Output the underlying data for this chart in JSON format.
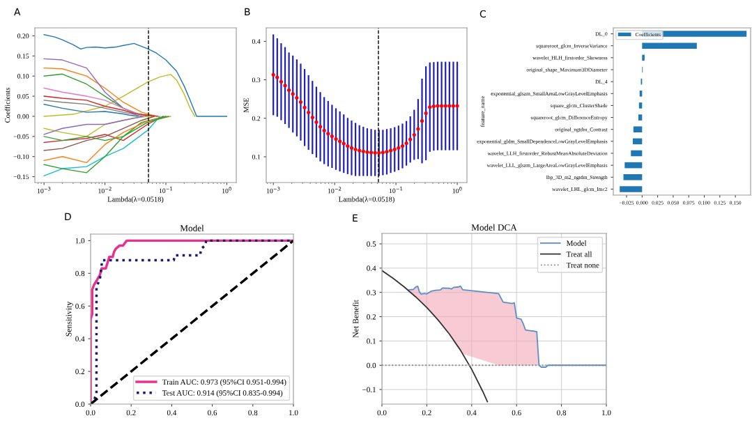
{
  "chart_data": [
    {
      "type": "line",
      "annotations": [
        "A"
      ],
      "xlabel": "Lambda(λ=0.0518)",
      "ylabel": "Coefficients",
      "log": "x",
      "grid": false,
      "legend": false,
      "xlim": [
        0.000707,
        1.43
      ],
      "xticks": [
        {
          "value": 0.001,
          "label": "10$^{−3}$"
        },
        {
          "value": 0.01,
          "label": "10$^{−2}$"
        },
        {
          "value": 0.1,
          "label": "10$^{−1}$"
        },
        {
          "value": 1,
          "label": "10$^{0}$"
        }
      ],
      "ylim": [
        -0.1645,
        0.2197
      ],
      "yticks": [
        {
          "value": -0.15,
          "label": "−0.15"
        },
        {
          "value": -0.1,
          "label": "−0.10"
        },
        {
          "value": -0.05,
          "label": "−0.05"
        },
        {
          "value": 0,
          "label": "0.00"
        },
        {
          "value": 0.05,
          "label": "0.05"
        },
        {
          "value": 0.1,
          "label": "0.10"
        },
        {
          "value": 0.15,
          "label": "0.15"
        },
        {
          "value": 0.2,
          "label": "0.20"
        }
      ],
      "ref_lines": [
        {
          "axis": "x",
          "value": 0.0518,
          "color": "#000000",
          "line_style": "dashed"
        }
      ],
      "series": [
        {
          "color": "#1f77b4",
          "x": [
            0.001,
            0.0015,
            0.002,
            0.003,
            0.004,
            0.005,
            0.007,
            0.01,
            0.015,
            0.02,
            0.03,
            0.05,
            0.07,
            0.1,
            0.15,
            0.2,
            0.25,
            0.32,
            1
          ],
          "values": [
            0.203,
            0.197,
            0.19,
            0.178,
            0.167,
            0.171,
            0.172,
            0.17,
            0.172,
            0.176,
            0.181,
            0.168,
            0.157,
            0.14,
            0.112,
            0.075,
            0.04,
            0.0,
            0.0
          ]
        },
        {
          "color": "#bcbd22",
          "x": [
            0.001,
            0.003,
            0.01,
            0.02,
            0.05,
            0.08,
            0.12,
            0.15,
            0.2,
            0.25,
            0.3
          ],
          "values": [
            0.0,
            0.005,
            0.025,
            0.05,
            0.085,
            0.098,
            0.104,
            0.09,
            0.055,
            0.02,
            0.0
          ]
        },
        {
          "color": "#ff7f0e",
          "x": [
            0.001,
            0.002,
            0.005,
            0.01,
            0.02,
            0.04,
            0.07
          ],
          "values": [
            0.12,
            0.118,
            0.1,
            0.07,
            0.035,
            0.01,
            0.0
          ]
        },
        {
          "color": "#9467bd",
          "x": [
            0.001,
            0.002,
            0.005,
            0.01,
            0.02,
            0.03,
            0.05
          ],
          "values": [
            0.143,
            0.14,
            0.12,
            0.06,
            0.02,
            0.008,
            0.0
          ]
        },
        {
          "color": "#2ca02c",
          "x": [
            0.001,
            0.002,
            0.005,
            0.01,
            0.02,
            0.035,
            0.06
          ],
          "values": [
            0.1,
            0.105,
            0.08,
            0.05,
            0.02,
            0.006,
            0.0
          ]
        },
        {
          "color": "#d62728",
          "x": [
            0.001,
            0.002,
            0.005,
            0.01,
            0.02,
            0.05,
            0.09
          ],
          "values": [
            -0.065,
            -0.06,
            -0.055,
            -0.045,
            -0.06,
            -0.02,
            0.0
          ]
        },
        {
          "color": "#17becf",
          "x": [
            0.001,
            0.002,
            0.005,
            0.01,
            0.02,
            0.05,
            0.08
          ],
          "values": [
            -0.148,
            -0.13,
            -0.125,
            -0.1,
            -0.08,
            -0.035,
            0.0
          ]
        },
        {
          "color": "#2ca02c",
          "x": [
            0.001,
            0.002,
            0.005,
            0.01,
            0.02,
            0.04,
            0.1
          ],
          "values": [
            -0.12,
            -0.13,
            -0.14,
            -0.1,
            -0.05,
            -0.015,
            0.0
          ]
        },
        {
          "color": "#ff7f0e",
          "x": [
            0.001,
            0.002,
            0.005,
            0.01,
            0.02,
            0.05,
            0.12
          ],
          "values": [
            -0.11,
            -0.1,
            -0.115,
            -0.07,
            -0.04,
            -0.012,
            0.0
          ]
        },
        {
          "color": "#8c564b",
          "x": [
            0.001,
            0.002,
            0.005,
            0.01,
            0.02,
            0.04,
            0.065
          ],
          "values": [
            -0.085,
            -0.08,
            -0.06,
            -0.05,
            -0.03,
            -0.01,
            0.0
          ]
        },
        {
          "color": "#e377c2",
          "x": [
            0.001,
            0.002,
            0.005,
            0.01,
            0.02,
            0.03,
            0.045
          ],
          "values": [
            0.07,
            0.06,
            0.05,
            0.04,
            0.02,
            0.01,
            0.0
          ]
        },
        {
          "color": "#7f7f7f",
          "x": [
            0.001,
            0.002,
            0.005,
            0.01,
            0.02,
            0.03,
            0.04
          ],
          "values": [
            0.04,
            0.035,
            0.03,
            0.02,
            0.01,
            0.005,
            0.0
          ]
        },
        {
          "color": "#bcbd22",
          "x": [
            0.001,
            0.002,
            0.005,
            0.01,
            0.02,
            0.03,
            0.055
          ],
          "values": [
            -0.03,
            -0.04,
            -0.05,
            -0.02,
            -0.01,
            -0.004,
            0.0
          ]
        },
        {
          "color": "#1f77b4",
          "x": [
            0.001,
            0.002,
            0.005,
            0.01,
            0.02,
            0.025,
            0.035
          ],
          "values": [
            0.03,
            0.02,
            0.01,
            0.012,
            0.006,
            0.003,
            0.0
          ]
        },
        {
          "color": "#9467bd",
          "x": [
            0.001,
            0.002,
            0.005,
            0.01,
            0.02,
            0.03,
            0.042
          ],
          "values": [
            -0.045,
            -0.03,
            -0.02,
            -0.02,
            -0.01,
            -0.005,
            0.0
          ]
        },
        {
          "color": "#d62728",
          "x": [
            0.001,
            0.002,
            0.005,
            0.01,
            0.02,
            0.03,
            0.075
          ],
          "values": [
            0.05,
            0.045,
            0.04,
            0.025,
            0.015,
            0.007,
            0.0
          ]
        },
        {
          "color": "#2ca02c",
          "x": [
            0.001,
            0.002,
            0.005,
            0.01,
            0.02,
            0.05,
            0.11
          ],
          "values": [
            -0.05,
            -0.06,
            -0.05,
            -0.06,
            -0.05,
            -0.015,
            0.0
          ]
        }
      ]
    },
    {
      "type": "scatter",
      "annotations": [
        "B"
      ],
      "xlabel": "Lambda(λ=0.0518)",
      "ylabel": "MSE",
      "log": "x",
      "grid": false,
      "legend": false,
      "marker": "circle",
      "xlim": [
        0.000766,
        1.44
      ],
      "xticks": [
        {
          "value": 0.001,
          "label": "10$^{−3}$"
        },
        {
          "value": 0.01,
          "label": "10$^{−2}$"
        },
        {
          "value": 0.1,
          "label": "10$^{−1}$"
        },
        {
          "value": 1,
          "label": "10$^{0}$"
        }
      ],
      "ylim": [
        0.033,
        0.435
      ],
      "yticks": [
        0.1,
        0.2,
        0.3,
        0.4
      ],
      "ref_lines": [
        {
          "axis": "x",
          "value": 0.0518,
          "color": "#000000",
          "line_style": "dashed"
        }
      ],
      "series": [
        {
          "color": "#ff0000",
          "x": [
            0.001,
            0.001158,
            0.001342,
            0.001554,
            0.001799,
            0.002084,
            0.002415,
            0.002797,
            0.00324,
            0.003753,
            0.004347,
            0.005036,
            0.005834,
            0.006758,
            0.007828,
            0.009066,
            0.0105,
            0.01217,
            0.01409,
            0.01632,
            0.01891,
            0.0219,
            0.02537,
            0.02938,
            0.03403,
            0.03942,
            0.04567,
            0.05289,
            0.06126,
            0.07097,
            0.08221,
            0.09522,
            0.1103,
            0.1278,
            0.148,
            0.1714,
            0.1986,
            0.23,
            0.2664,
            0.3086,
            0.3575,
            0.414,
            0.4796,
            0.5556,
            0.6435,
            0.7454,
            0.8636,
            1
          ],
          "values": [
            0.313,
            0.306,
            0.295,
            0.285,
            0.273,
            0.263,
            0.253,
            0.242,
            0.228,
            0.215,
            0.202,
            0.19,
            0.178,
            0.168,
            0.16,
            0.153,
            0.146,
            0.14,
            0.134,
            0.128,
            0.123,
            0.119,
            0.116,
            0.114,
            0.112,
            0.111,
            0.11,
            0.11,
            0.111,
            0.113,
            0.116,
            0.119,
            0.123,
            0.128,
            0.135,
            0.145,
            0.157,
            0.172,
            0.193,
            0.213,
            0.229,
            0.231,
            0.232,
            0.232,
            0.232,
            0.232,
            0.232,
            0.232
          ],
          "errors": [
            0.105,
            0.102,
            0.1,
            0.1,
            0.098,
            0.1,
            0.1,
            0.1,
            0.1,
            0.097,
            0.095,
            0.092,
            0.09,
            0.087,
            0.085,
            0.082,
            0.08,
            0.078,
            0.076,
            0.073,
            0.071,
            0.069,
            0.066,
            0.064,
            0.062,
            0.061,
            0.06,
            0.06,
            0.059,
            0.059,
            0.058,
            0.058,
            0.058,
            0.058,
            0.058,
            0.06,
            0.065,
            0.078,
            0.11,
            0.122,
            0.116,
            0.115,
            0.115,
            0.115,
            0.115,
            0.115,
            0.115,
            0.115
          ]
        }
      ]
    },
    {
      "type": "bar",
      "orientation": "horizontal",
      "annotations": [
        "C"
      ],
      "ylabel": "feature_name",
      "grid": false,
      "legend": "top left",
      "categories": [
        "DL_0",
        "squareroot_glcm_InverseVariance",
        "wavelet_HLH_firstorder_Skewness",
        "original_shape_Maximum3DDiameter",
        "DL_4",
        "exponential_glszm_SmallAreaLowGrayLevelEmphasis",
        "square_glcm_ClusterShade",
        "squareroot_glcm_DifferenceEntropy",
        "original_ngtdm_Contrast",
        "exponential_gldm_SmallDependenceLowGrayLevelEmphasis",
        "wavelet_LLH_firstorder_RobustMeanAbsoluteDeviation",
        "wavelet_LLL_glszm_LargeAreaLowGrayLevelEmphasis",
        "lbp_3D_m2_ngtdm_Strength",
        "wavelet_LHL_glcm_Imc2"
      ],
      "xlim": [
        -0.0463,
        0.1745
      ],
      "xticks": [
        {
          "value": -0.025,
          "label": "−0.025"
        },
        {
          "value": 0.0,
          "label": "0.000"
        },
        {
          "value": 0.025,
          "label": "0.025"
        },
        {
          "value": 0.05,
          "label": "0.050"
        },
        {
          "value": 0.075,
          "label": "0.075"
        },
        {
          "value": 0.1,
          "label": "0.100"
        },
        {
          "value": 0.125,
          "label": "0.125"
        },
        {
          "value": 0.15,
          "label": "0.150"
        }
      ],
      "series": [
        {
          "name": "Coefficients",
          "color": "#1f77b4",
          "values": [
            0.168,
            0.088,
            0.004,
            0.001,
            -0.002,
            -0.004,
            -0.005,
            -0.006,
            -0.014,
            -0.015,
            -0.018,
            -0.028,
            -0.03,
            -0.036
          ]
        }
      ]
    },
    {
      "type": "line",
      "annotations": [
        "D"
      ],
      "title": "Model",
      "ylabel": "Sensitivity",
      "grid": false,
      "legend": "bottom right",
      "xlim": [
        0,
        1
      ],
      "xticks": [
        {
          "value": 0,
          "label": "0.0"
        },
        {
          "value": 0.2,
          "label": "0.2"
        },
        {
          "value": 0.4,
          "label": "0.4"
        },
        {
          "value": 0.6,
          "label": "0.6"
        },
        {
          "value": 0.8,
          "label": "0.8"
        },
        {
          "value": 1,
          "label": "1.0"
        }
      ],
      "ylim": [
        0,
        1.04
      ],
      "yticks": [
        {
          "value": 0,
          "label": "0.0"
        },
        {
          "value": 0.2,
          "label": "0.2"
        },
        {
          "value": 0.4,
          "label": "0.4"
        },
        {
          "value": 0.6,
          "label": "0.6"
        },
        {
          "value": 0.8,
          "label": "0.8"
        },
        {
          "value": 1,
          "label": "1.0"
        }
      ],
      "series": [
        {
          "name": "Train AUC: 0.973 (95%CI 0.951-0.994)",
          "color": "#e8308f",
          "line_style": "solid",
          "x": [
            0,
            0,
            0.008,
            0.008,
            0.017,
            0.032,
            0.046,
            0.054,
            0.075,
            0.092,
            0.109,
            0.115,
            0.124,
            0.143,
            0.16,
            0.178,
            1.0
          ],
          "values": [
            0,
            0.52,
            0.55,
            0.7,
            0.73,
            0.76,
            0.79,
            0.83,
            0.83,
            0.9,
            0.9,
            0.93,
            0.95,
            0.97,
            0.97,
            1.0,
            1.0
          ]
        },
        {
          "name": "Test AUC: 0.914 (95%CI 0.835-0.994)",
          "color": "#1a1a6e",
          "line_style": "dotted",
          "x": [
            0,
            0.015,
            0.029,
            0.029,
            0.045,
            0.05,
            0.057,
            0.41,
            0.415,
            0.54,
            0.545,
            0.565,
            0.57,
            1.0
          ],
          "values": [
            0,
            0.02,
            0.06,
            0.72,
            0.76,
            0.8,
            0.88,
            0.88,
            0.91,
            0.91,
            0.95,
            0.97,
            1.0,
            1.0
          ]
        },
        {
          "color": "#000000",
          "line_style": "dashed",
          "x": [
            0,
            1
          ],
          "values": [
            0,
            1
          ]
        }
      ]
    },
    {
      "type": "line",
      "annotations": [
        "E"
      ],
      "title": "Model DCA",
      "ylabel": "Net Benefit",
      "grid": true,
      "legend": "top right",
      "xlim": [
        0,
        1
      ],
      "xticks": [
        {
          "value": 0,
          "label": "0.0"
        },
        {
          "value": 0.2,
          "label": "0.2"
        },
        {
          "value": 0.4,
          "label": "0.4"
        },
        {
          "value": 0.6,
          "label": "0.6"
        },
        {
          "value": 0.8,
          "label": "0.8"
        },
        {
          "value": 1,
          "label": "1.0"
        }
      ],
      "ylim": [
        -0.16,
        0.543
      ],
      "yticks": [
        {
          "value": -0.1,
          "label": "−0.1"
        },
        {
          "value": 0,
          "label": "0.0"
        },
        {
          "value": 0.1,
          "label": "0.1"
        },
        {
          "value": 0.2,
          "label": "0.2"
        },
        {
          "value": 0.3,
          "label": "0.3"
        },
        {
          "value": 0.4,
          "label": "0.4"
        },
        {
          "value": 0.5,
          "label": "0.5"
        }
      ],
      "series": [
        {
          "name": "Model",
          "color": "#5b8fc7",
          "line_style": "solid",
          "x": [
            0.122,
            0.14,
            0.15,
            0.16,
            0.168,
            0.175,
            0.19,
            0.2,
            0.22,
            0.24,
            0.26,
            0.27,
            0.3,
            0.31,
            0.32,
            0.34,
            0.35,
            0.36,
            0.52,
            0.54,
            0.58,
            0.59,
            0.6,
            0.62,
            0.63,
            0.64,
            0.68,
            0.69,
            0.7,
            0.71,
            0.73,
            0.74,
            1.0
          ],
          "values": [
            0.311,
            0.312,
            0.322,
            0.325,
            0.3,
            0.293,
            0.296,
            0.294,
            0.305,
            0.309,
            0.31,
            0.318,
            0.317,
            0.314,
            0.321,
            0.322,
            0.326,
            0.311,
            0.295,
            0.26,
            0.254,
            0.257,
            0.195,
            0.19,
            0.17,
            0.145,
            0.14,
            0.138,
            0.0,
            -0.008,
            -0.008,
            0.0,
            0.0
          ],
          "lower": [
            0.305,
            0.291,
            0.282,
            0.274,
            0.267,
            0.261,
            0.247,
            0.238,
            0.218,
            0.197,
            0.176,
            0.164,
            0.129,
            0.116,
            0.103,
            0.076,
            0.062,
            0.047,
            0,
            0,
            0,
            0,
            0,
            0,
            0,
            0,
            0,
            0,
            0,
            null,
            null,
            null,
            null
          ],
          "upper": [
            0.311,
            0.312,
            0.322,
            0.325,
            0.3,
            0.293,
            0.296,
            0.294,
            0.305,
            0.309,
            0.31,
            0.318,
            0.317,
            0.314,
            0.321,
            0.322,
            0.326,
            0.311,
            0.295,
            0.26,
            0.254,
            0.257,
            0.195,
            0.19,
            0.17,
            0.145,
            0.14,
            0.138,
            0.0,
            null,
            null,
            null,
            null
          ]
        },
        {
          "name": "Treat all",
          "color": "#333333",
          "line_style": "solid",
          "x": [
            0,
            0.05,
            0.1,
            0.15,
            0.2,
            0.25,
            0.3,
            0.35,
            0.4,
            0.45,
            0.47
          ],
          "values": [
            0.39,
            0.358,
            0.322,
            0.282,
            0.238,
            0.187,
            0.129,
            0.062,
            -0.017,
            -0.109,
            -0.15
          ]
        },
        {
          "name": "Treat none",
          "color": "#888888",
          "line_style": "dotted",
          "x": [
            0,
            1
          ],
          "values": [
            0,
            0
          ]
        }
      ]
    }
  ]
}
